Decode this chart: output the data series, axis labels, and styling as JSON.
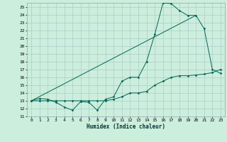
{
  "xlabel": "Humidex (Indice chaleur)",
  "bg_color": "#cceedd",
  "grid_color": "#aacccc",
  "line_color": "#006655",
  "xlim": [
    -0.5,
    23.5
  ],
  "ylim": [
    11,
    25.5
  ],
  "xticks": [
    0,
    1,
    2,
    3,
    4,
    5,
    6,
    7,
    8,
    9,
    10,
    11,
    12,
    13,
    14,
    15,
    16,
    17,
    18,
    19,
    20,
    21,
    22,
    23
  ],
  "yticks": [
    11,
    12,
    13,
    14,
    15,
    16,
    17,
    18,
    19,
    20,
    21,
    22,
    23,
    24,
    25
  ],
  "line1_x": [
    0,
    1,
    2,
    3,
    4,
    5,
    6,
    7,
    8,
    9,
    10,
    11,
    12,
    13,
    14,
    15,
    16,
    17,
    18,
    19,
    20,
    21,
    22,
    23
  ],
  "line1_y": [
    13,
    13.3,
    13.2,
    12.8,
    12.2,
    11.8,
    12.9,
    12.8,
    11.8,
    13.2,
    13.5,
    15.5,
    16.0,
    16.0,
    18.0,
    21.5,
    25.5,
    25.4,
    24.5,
    23.9,
    23.9,
    22.2,
    17.0,
    16.5
  ],
  "line2_x": [
    0,
    1,
    2,
    3,
    4,
    5,
    6,
    7,
    8,
    9,
    10,
    11,
    12,
    13,
    14,
    15,
    16,
    17,
    18,
    19,
    20,
    21,
    22,
    23
  ],
  "line2_y": [
    13,
    13.0,
    13.0,
    13.0,
    13.0,
    13.0,
    13.0,
    13.0,
    13.0,
    13.0,
    13.2,
    13.5,
    14.0,
    14.0,
    14.2,
    15.0,
    15.5,
    16.0,
    16.2,
    16.2,
    16.3,
    16.4,
    16.6,
    17.0
  ],
  "line3_x": [
    0,
    20
  ],
  "line3_y": [
    13,
    23.9
  ],
  "figsize": [
    3.2,
    2.0
  ],
  "dpi": 100
}
